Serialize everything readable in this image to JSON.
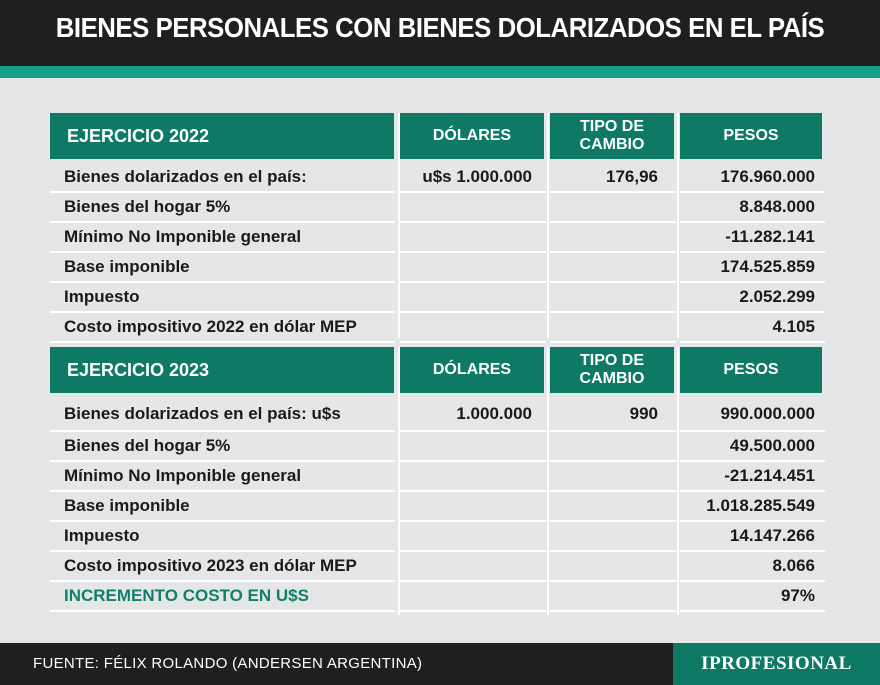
{
  "title": "BIENES PERSONALES CON BIENES DOLARIZADOS EN EL PAÍS",
  "sections": [
    {
      "year_label": "EJERCICIO 2022",
      "col_dolares": "DÓLARES",
      "col_tipo": "TIPO DE\nCAMBIO",
      "col_pesos": "PESOS",
      "rows": [
        {
          "label": "Bienes dolarizados en el país:",
          "dolares": "u$s 1.000.000",
          "tipo": "176,96",
          "pesos": "176.960.000"
        },
        {
          "label": "Bienes del hogar 5%",
          "dolares": "",
          "tipo": "",
          "pesos": "8.848.000"
        },
        {
          "label": "Mínimo No Imponible general",
          "dolares": "",
          "tipo": "",
          "pesos": "-11.282.141"
        },
        {
          "label": "Base imponible",
          "dolares": "",
          "tipo": "",
          "pesos": "174.525.859"
        },
        {
          "label": "Impuesto",
          "dolares": "",
          "tipo": "",
          "pesos": "2.052.299"
        },
        {
          "label": "Costo impositivo 2022 en dólar MEP",
          "dolares": "",
          "tipo": "",
          "pesos": "4.105"
        }
      ]
    },
    {
      "year_label": "EJERCICIO 2023",
      "col_dolares": "DÓLARES",
      "col_tipo": "TIPO DE\nCAMBIO",
      "col_pesos": "PESOS",
      "rows": [
        {
          "label": "Bienes dolarizados en el país: u$s",
          "dolares": "1.000.000",
          "tipo": "990",
          "pesos": "990.000.000"
        },
        {
          "label": "Bienes del hogar 5%",
          "dolares": "",
          "tipo": "",
          "pesos": "49.500.000"
        },
        {
          "label": "Mínimo No Imponible general",
          "dolares": "",
          "tipo": "",
          "pesos": "-21.214.451"
        },
        {
          "label": "Base imponible",
          "dolares": "",
          "tipo": "",
          "pesos": "1.018.285.549"
        },
        {
          "label": "Impuesto",
          "dolares": "",
          "tipo": "",
          "pesos": "14.147.266"
        },
        {
          "label": "Costo impositivo 2023 en dólar MEP",
          "dolares": "",
          "tipo": "",
          "pesos": "8.066"
        },
        {
          "label": "INCREMENTO COSTO EN U$S",
          "dolares": "",
          "tipo": "",
          "pesos": "97%"
        }
      ]
    }
  ],
  "footer": {
    "source": "FUENTE: FÉLIX ROLANDO (ANDERSEN ARGENTINA)",
    "logo": "IPROFESIONAL"
  },
  "colors": {
    "header_bg": "#1f1f1f",
    "accent_bar": "#15a08c",
    "table_header": "#0e7a66",
    "page_bg": "#e5e6e7",
    "highlight_text": "#11806b"
  }
}
